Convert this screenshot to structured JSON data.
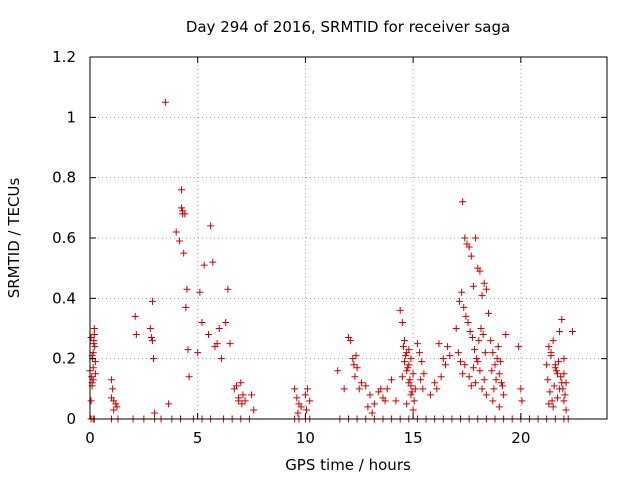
{
  "chart_data": {
    "type": "scatter",
    "title": "Day 294 of 2016, SRMTID for receiver saga",
    "xlabel": "GPS time / hours",
    "ylabel": "SRMTID / TECUs",
    "xlim": [
      0,
      24
    ],
    "ylim": [
      0,
      1.2
    ],
    "xticks": [
      0,
      5,
      10,
      15,
      20
    ],
    "xtick_labels": [
      "0",
      "5",
      "10",
      "15",
      "20"
    ],
    "yticks": [
      0,
      0.2,
      0.4,
      0.6,
      0.8,
      1.0,
      1.2
    ],
    "ytick_labels": [
      "0",
      "0.2",
      "0.4",
      "0.6",
      "0.8",
      "1",
      "1.2"
    ],
    "grid": true,
    "marker": "+",
    "series_color": "#d00000",
    "series": [
      {
        "name": "SRMTID",
        "x": [
          0.0,
          0.05,
          0.08,
          0.1,
          0.12,
          0.15,
          0.18,
          0.2,
          0.22,
          0.25,
          0.05,
          0.1,
          0.15,
          0.2,
          0.25,
          0.1,
          0.15,
          0.18,
          1.0,
          1.05,
          1.1,
          1.2,
          1.25,
          1.0,
          1.1,
          2.1,
          2.15,
          2.8,
          2.85,
          2.9,
          2.95,
          2.9,
          3.0,
          3.5,
          3.65,
          4.0,
          4.15,
          4.25,
          4.3,
          4.4,
          4.5,
          4.35,
          4.45,
          4.55,
          4.6,
          4.25,
          4.3,
          5.0,
          5.1,
          5.2,
          5.3,
          5.5,
          5.6,
          5.7,
          5.8,
          5.9,
          6.0,
          6.1,
          6.3,
          6.4,
          6.5,
          6.7,
          6.8,
          6.9,
          7.0,
          7.1,
          7.2,
          7.5,
          7.6,
          6.9,
          7.05,
          9.5,
          9.6,
          9.7,
          9.8,
          9.65,
          10.0,
          10.1,
          10.2,
          10.05,
          11.5,
          11.8,
          12.0,
          12.1,
          12.2,
          12.3,
          12.4,
          12.5,
          12.25,
          12.35,
          12.6,
          12.8,
          13.0,
          13.2,
          13.4,
          13.6,
          13.8,
          14.0,
          14.2,
          12.9,
          13.1,
          13.5,
          13.7,
          14.4,
          14.5,
          14.6,
          14.7,
          14.8,
          14.9,
          15.0,
          15.1,
          14.55,
          14.65,
          14.75,
          14.85,
          14.95,
          15.05,
          14.6,
          14.7,
          14.8,
          14.9,
          14.5,
          14.7,
          15.0,
          14.8,
          14.9,
          15.2,
          15.3,
          15.4,
          15.5,
          15.35,
          15.45,
          15.8,
          16.0,
          16.1,
          16.3,
          16.4,
          16.5,
          16.7,
          16.2,
          16.6,
          17.0,
          17.1,
          17.2,
          17.3,
          17.4,
          17.5,
          17.6,
          17.7,
          17.8,
          17.9,
          18.0,
          18.1,
          18.2,
          18.3,
          18.4,
          18.5,
          17.15,
          17.25,
          17.35,
          17.45,
          17.55,
          17.65,
          17.75,
          17.85,
          17.95,
          18.05,
          18.15,
          18.25,
          18.35,
          17.4,
          17.3,
          17.9,
          18.2,
          18.4,
          17.6,
          17.7,
          17.8,
          18.0,
          18.1,
          18.3,
          18.6,
          18.7,
          18.8,
          18.9,
          19.0,
          19.1,
          19.2,
          19.3,
          18.65,
          18.75,
          18.85,
          18.95,
          19.05,
          19.15,
          18.7,
          19.0,
          19.9,
          20.0,
          20.05,
          21.2,
          21.3,
          21.4,
          21.5,
          21.6,
          21.7,
          21.8,
          21.9,
          22.0,
          22.1,
          21.25,
          21.35,
          21.45,
          21.55,
          21.65,
          21.75,
          21.85,
          21.95,
          22.05,
          21.3,
          21.5,
          21.7,
          21.9,
          22.0,
          22.1,
          21.4,
          21.6,
          21.8,
          22.0,
          22.4,
          0.05,
          0.15,
          0.2,
          1.0,
          1.3,
          2.0,
          2.5,
          3.0,
          3.3,
          3.8,
          4.2,
          4.8,
          5.2,
          5.6,
          6.2,
          6.6,
          7.0,
          7.4,
          9.5,
          9.7,
          10.0,
          10.2,
          11.6,
          12.0,
          12.4,
          12.8,
          13.2,
          13.6,
          14.0,
          14.4,
          14.8,
          15.2,
          15.6,
          16.0,
          16.4,
          16.8,
          17.2,
          17.6,
          18.0,
          18.4,
          18.8,
          19.2,
          19.6,
          20.0,
          20.4,
          20.8,
          21.2,
          21.6,
          22.0,
          22.2
        ],
        "y": [
          0.16,
          0.06,
          0.14,
          0.11,
          0.2,
          0.22,
          0.26,
          0.3,
          0.24,
          0.19,
          0.27,
          0.21,
          0.17,
          0.28,
          0.15,
          0.12,
          0.13,
          0.25,
          0.13,
          0.1,
          0.06,
          0.05,
          0.04,
          0.07,
          0.03,
          0.34,
          0.28,
          0.3,
          0.27,
          0.39,
          0.2,
          0.26,
          0.02,
          1.05,
          0.05,
          0.62,
          0.59,
          0.76,
          0.69,
          0.68,
          0.43,
          0.55,
          0.37,
          0.23,
          0.14,
          0.7,
          0.68,
          0.22,
          0.42,
          0.32,
          0.51,
          0.28,
          0.64,
          0.52,
          0.24,
          0.25,
          0.3,
          0.2,
          0.32,
          0.43,
          0.25,
          0.1,
          0.11,
          0.06,
          0.12,
          0.08,
          0.06,
          0.08,
          0.03,
          0.07,
          0.05,
          0.1,
          0.07,
          0.05,
          0.04,
          0.02,
          0.08,
          0.1,
          0.06,
          0.03,
          0.16,
          0.1,
          0.27,
          0.26,
          0.2,
          0.14,
          0.17,
          0.1,
          0.18,
          0.21,
          0.12,
          0.11,
          0.08,
          0.05,
          0.09,
          0.07,
          0.1,
          0.13,
          0.06,
          0.04,
          0.02,
          0.1,
          0.06,
          0.36,
          0.32,
          0.26,
          0.22,
          0.18,
          0.2,
          0.15,
          0.1,
          0.24,
          0.21,
          0.17,
          0.13,
          0.09,
          0.06,
          0.19,
          0.16,
          0.12,
          0.08,
          0.14,
          0.05,
          0.03,
          0.23,
          0.11,
          0.25,
          0.22,
          0.19,
          0.15,
          0.13,
          0.1,
          0.08,
          0.12,
          0.1,
          0.14,
          0.2,
          0.18,
          0.21,
          0.25,
          0.24,
          0.3,
          0.22,
          0.19,
          0.72,
          0.6,
          0.58,
          0.57,
          0.54,
          0.44,
          0.6,
          0.5,
          0.49,
          0.41,
          0.45,
          0.43,
          0.35,
          0.39,
          0.42,
          0.37,
          0.34,
          0.32,
          0.29,
          0.27,
          0.23,
          0.2,
          0.26,
          0.3,
          0.28,
          0.22,
          0.18,
          0.15,
          0.12,
          0.1,
          0.08,
          0.14,
          0.11,
          0.17,
          0.19,
          0.16,
          0.13,
          0.26,
          0.22,
          0.18,
          0.2,
          0.15,
          0.12,
          0.08,
          0.28,
          0.16,
          0.1,
          0.13,
          0.24,
          0.19,
          0.11,
          0.06,
          0.04,
          0.24,
          0.1,
          0.06,
          0.18,
          0.24,
          0.21,
          0.26,
          0.17,
          0.15,
          0.29,
          0.33,
          0.2,
          0.12,
          0.13,
          0.09,
          0.06,
          0.11,
          0.16,
          0.19,
          0.14,
          0.1,
          0.08,
          0.05,
          0.04,
          0.07,
          0.12,
          0.15,
          0.03,
          0.22,
          0.18,
          0.1,
          0.06,
          0.29,
          0,
          0,
          0,
          0,
          0,
          0,
          0,
          0,
          0,
          0,
          0,
          0,
          0,
          0,
          0,
          0,
          0,
          0,
          0,
          0,
          0,
          0,
          0,
          0,
          0,
          0,
          0,
          0,
          0,
          0,
          0,
          0,
          0,
          0,
          0,
          0,
          0,
          0,
          0,
          0,
          0,
          0,
          0,
          0,
          0,
          0,
          0,
          0,
          0,
          0
        ]
      }
    ]
  }
}
